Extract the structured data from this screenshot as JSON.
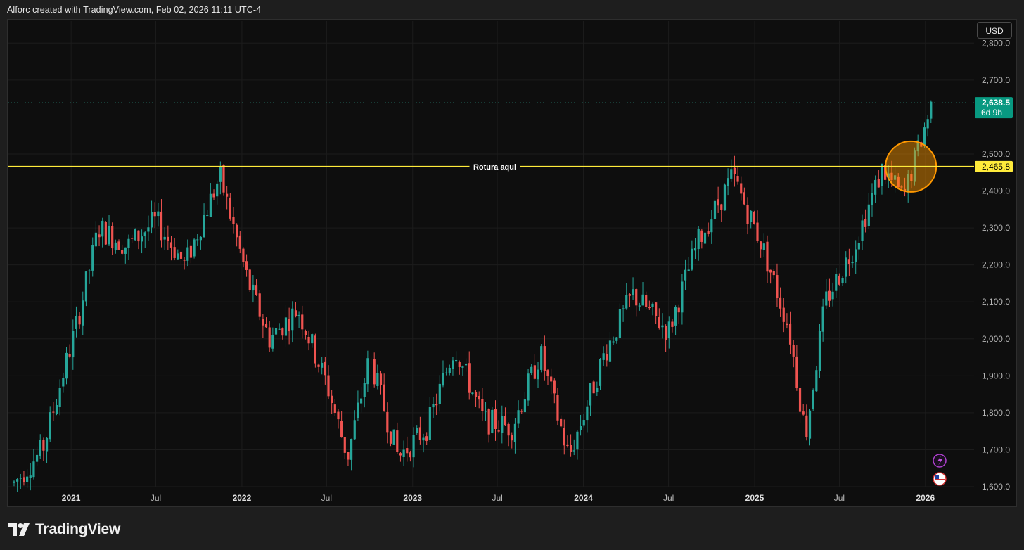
{
  "header": {
    "attribution": "Alforc created with TradingView.com, Feb 02, 2026 11:11 UTC-4"
  },
  "toolbar": {
    "currency": "USD"
  },
  "footer": {
    "brand": "TradingView"
  },
  "colors": {
    "up": "#26a69a",
    "down": "#ef5350",
    "level_line": "#ffeb3b",
    "highlight": "#ff9800",
    "price_badge": "#089981",
    "background": "#0e0e0e"
  },
  "icons": [
    "lightning-icon",
    "us-flag-icon",
    "tradingview-logo-icon"
  ],
  "chart_data": {
    "type": "candlestick",
    "interval": "weekly",
    "currency": "USD",
    "y_axis": {
      "range": [
        1600,
        2810
      ],
      "ticks": [
        "1,600.0",
        "1,700.0",
        "1,800.0",
        "1,900.0",
        "2,000.0",
        "2,100.0",
        "2,200.0",
        "2,300.0",
        "2,400.0",
        "2,500.0",
        "2,700.0",
        "2,800.0"
      ]
    },
    "x_axis": {
      "range": [
        "2020-08-20",
        "2026-04-15"
      ],
      "ticks": [
        {
          "date": "2021-01-01",
          "label": "2021"
        },
        {
          "date": "2021-07-01",
          "label": "Jul"
        },
        {
          "date": "2022-01-01",
          "label": "2022"
        },
        {
          "date": "2022-07-01",
          "label": "Jul"
        },
        {
          "date": "2023-01-01",
          "label": "2023"
        },
        {
          "date": "2023-07-01",
          "label": "Jul"
        },
        {
          "date": "2024-01-01",
          "label": "2024"
        },
        {
          "date": "2024-07-01",
          "label": "Jul"
        },
        {
          "date": "2025-01-01",
          "label": "2025"
        },
        {
          "date": "2025-07-01",
          "label": "Jul"
        },
        {
          "date": "2026-01-01",
          "label": "2026"
        }
      ]
    },
    "horizontal_line": {
      "value": 2465.8,
      "label": "Rotura aqui",
      "price_label": "2,465.8"
    },
    "last_price": {
      "value": 2638.5,
      "label": "2,638.5",
      "countdown": "6d 9h"
    },
    "highlight_circle": {
      "date": "2025-12-01",
      "value": 2465.8
    },
    "approximate_close_path": [
      {
        "date": "2020-09-01",
        "close": 1610
      },
      {
        "date": "2020-11-01",
        "close": 1700
      },
      {
        "date": "2021-01-15",
        "close": 2050
      },
      {
        "date": "2021-03-01",
        "close": 2300
      },
      {
        "date": "2021-05-01",
        "close": 2250
      },
      {
        "date": "2021-07-01",
        "close": 2320
      },
      {
        "date": "2021-09-01",
        "close": 2200
      },
      {
        "date": "2021-11-15",
        "close": 2440
      },
      {
        "date": "2022-01-15",
        "close": 2150
      },
      {
        "date": "2022-03-01",
        "close": 2000
      },
      {
        "date": "2022-05-01",
        "close": 2080
      },
      {
        "date": "2022-07-01",
        "close": 1880
      },
      {
        "date": "2022-08-15",
        "close": 1680
      },
      {
        "date": "2022-10-01",
        "close": 1950
      },
      {
        "date": "2022-12-01",
        "close": 1680
      },
      {
        "date": "2023-02-01",
        "close": 1760
      },
      {
        "date": "2023-04-01",
        "close": 1980
      },
      {
        "date": "2023-06-01",
        "close": 1780
      },
      {
        "date": "2023-08-01",
        "close": 1760
      },
      {
        "date": "2023-10-01",
        "close": 1960
      },
      {
        "date": "2023-12-01",
        "close": 1680
      },
      {
        "date": "2024-02-15",
        "close": 1960
      },
      {
        "date": "2024-04-15",
        "close": 2120
      },
      {
        "date": "2024-07-01",
        "close": 2020
      },
      {
        "date": "2024-09-01",
        "close": 2260
      },
      {
        "date": "2024-11-15",
        "close": 2440
      },
      {
        "date": "2025-01-15",
        "close": 2260
      },
      {
        "date": "2025-03-15",
        "close": 2030
      },
      {
        "date": "2025-04-20",
        "close": 1740
      },
      {
        "date": "2025-06-01",
        "close": 2100
      },
      {
        "date": "2025-08-01",
        "close": 2250
      },
      {
        "date": "2025-10-01",
        "close": 2460
      },
      {
        "date": "2025-11-15",
        "close": 2380
      },
      {
        "date": "2026-01-15",
        "close": 2638.5
      }
    ]
  }
}
